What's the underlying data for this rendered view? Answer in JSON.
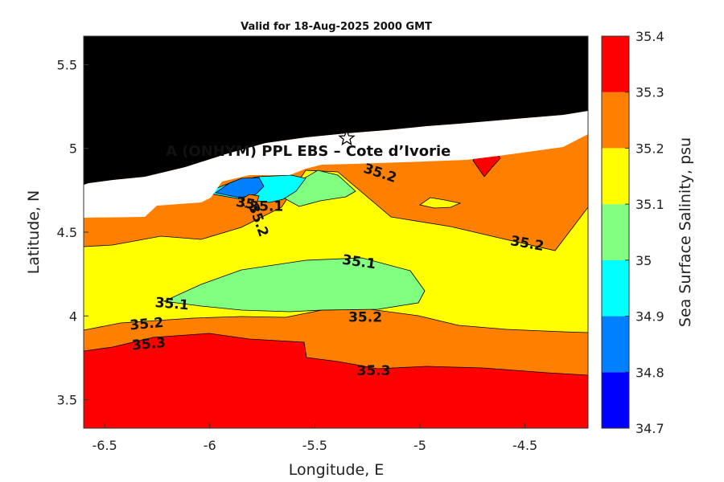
{
  "chart_data": {
    "type": "filled-contour",
    "title": "Valid for 18-Aug-2025 2000 GMT",
    "xlabel": "Longitude, E",
    "ylabel": "Latitude, N",
    "xlim": [
      -6.6,
      -4.2
    ],
    "ylim": [
      3.33,
      5.67
    ],
    "xticks": [
      "-6.5",
      "-6",
      "-5.5",
      "-5",
      "-4.5"
    ],
    "yticks": [
      "3.5",
      "4",
      "4.5",
      "5",
      "5.5"
    ],
    "site_label": "A (ONHYM) PPL EBS  – Cote d’Ivorie",
    "site_marker": {
      "lon": -5.34,
      "lat": 5.05
    },
    "colorbar": {
      "label": "Sea Surface Salinity, psu",
      "levels": [
        "34.7",
        "34.8",
        "34.9",
        "35",
        "35.1",
        "35.2",
        "35.3",
        "35.4"
      ],
      "colors": [
        "#0000ff",
        "#007fff",
        "#00ffff",
        "#80ff80",
        "#ffff00",
        "#ff8000",
        "#ff0000"
      ]
    },
    "land_color": "#000000",
    "contour_labels": [
      {
        "text": "35.2",
        "lon": -5.19,
        "lat": 4.85,
        "angle": 18
      },
      {
        "text": "35.2",
        "lon": -4.49,
        "lat": 4.43,
        "angle": 10
      },
      {
        "text": "35.1",
        "lon": -5.29,
        "lat": 4.32,
        "angle": 8
      },
      {
        "text": "35.1",
        "lon": -6.18,
        "lat": 4.07,
        "angle": 5
      },
      {
        "text": "35.2",
        "lon": -5.26,
        "lat": 3.99,
        "angle": 0
      },
      {
        "text": "35.2",
        "lon": -6.3,
        "lat": 3.95,
        "angle": -5
      },
      {
        "text": "35.3",
        "lon": -6.29,
        "lat": 3.83,
        "angle": -5
      },
      {
        "text": "35.3",
        "lon": -5.22,
        "lat": 3.67,
        "angle": 0
      },
      {
        "text": "35.1",
        "lon": -5.73,
        "lat": 4.65,
        "angle": 0
      },
      {
        "text": "35",
        "lon": -5.83,
        "lat": 4.67,
        "angle": 10
      },
      {
        "text": "35.2",
        "lon": -5.77,
        "lat": 4.57,
        "angle": 70
      }
    ]
  }
}
